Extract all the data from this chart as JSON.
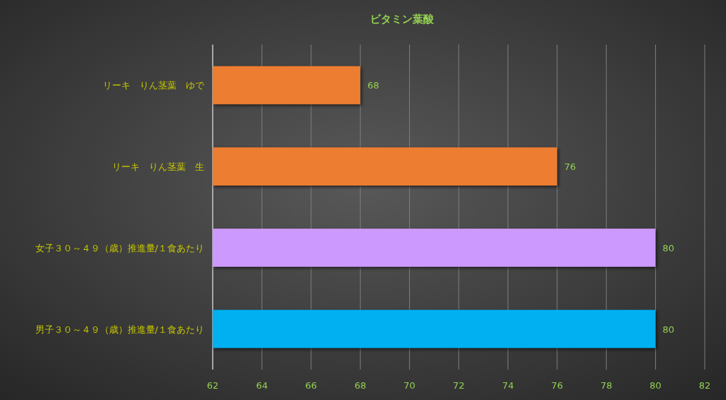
{
  "chart_data": {
    "type": "bar",
    "orientation": "horizontal",
    "title": "ビタミン葉酸",
    "categories": [
      "リーキ　りん茎葉　ゆで",
      "リーキ　りん茎葉　生",
      "女子３０～４９（歳）推進量/１食あたり",
      "男子３０～４９（歳）推進量/１食あたり"
    ],
    "values": [
      68,
      76,
      80,
      80
    ],
    "colors": [
      "#ed7d31",
      "#ed7d31",
      "#cc99ff",
      "#00b0f0"
    ],
    "xlim": [
      62,
      82
    ],
    "xticks": [
      62,
      64,
      66,
      68,
      70,
      72,
      74,
      76,
      78,
      80,
      82
    ],
    "grid": "x",
    "data_labels": true
  }
}
